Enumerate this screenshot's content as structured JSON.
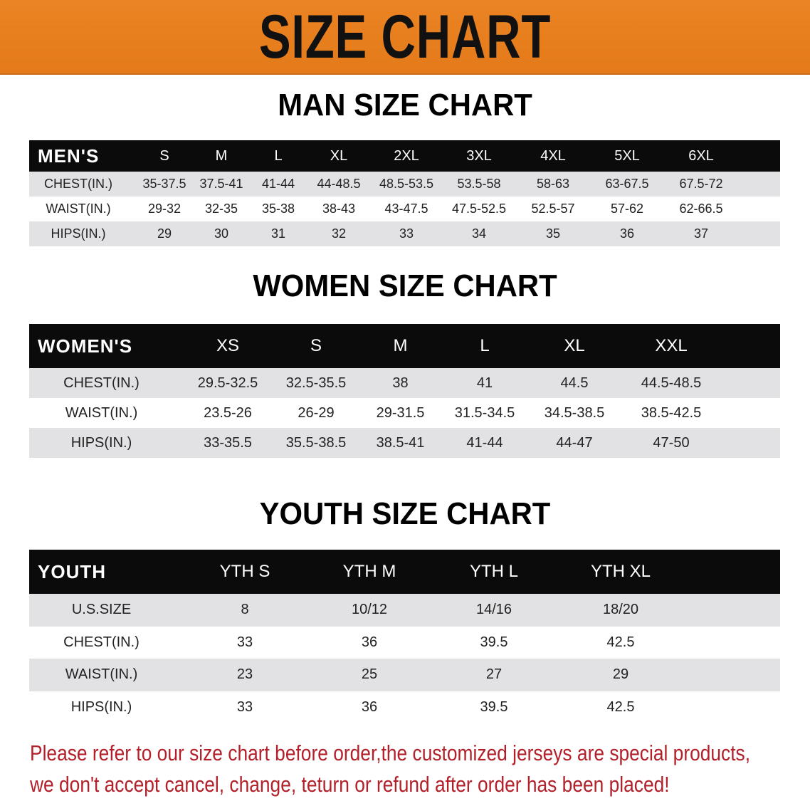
{
  "banner_title": "SIZE CHART",
  "colors": {
    "banner": "#e8801e",
    "header_row": "#0b0b0b",
    "stripe": "#e2e2e4",
    "notice": "#b3202a"
  },
  "men": {
    "title": "MAN SIZE CHART",
    "header": [
      "MEN'S",
      "S",
      "M",
      "L",
      "XL",
      "2XL",
      "3XL",
      "4XL",
      "5XL",
      "6XL"
    ],
    "rows": [
      [
        "CHEST(IN.)",
        "35-37.5",
        "37.5-41",
        "41-44",
        "44-48.5",
        "48.5-53.5",
        "53.5-58",
        "58-63",
        "63-67.5",
        "67.5-72"
      ],
      [
        "WAIST(IN.)",
        "29-32",
        "32-35",
        "35-38",
        "38-43",
        "43-47.5",
        "47.5-52.5",
        "52.5-57",
        "57-62",
        "62-66.5"
      ],
      [
        "HIPS(IN.)",
        "29",
        "30",
        "31",
        "32",
        "33",
        "34",
        "35",
        "36",
        "37"
      ]
    ]
  },
  "women": {
    "title": "WOMEN SIZE CHART",
    "header": [
      "WOMEN'S",
      "XS",
      "S",
      "M",
      "L",
      "XL",
      "XXL"
    ],
    "rows": [
      [
        "CHEST(IN.)",
        "29.5-32.5",
        "32.5-35.5",
        "38",
        "41",
        "44.5",
        "44.5-48.5"
      ],
      [
        "WAIST(IN.)",
        "23.5-26",
        "26-29",
        "29-31.5",
        "31.5-34.5",
        "34.5-38.5",
        "38.5-42.5"
      ],
      [
        "HIPS(IN.)",
        "33-35.5",
        "35.5-38.5",
        "38.5-41",
        "41-44",
        "44-47",
        "47-50"
      ]
    ]
  },
  "youth": {
    "title": "YOUTH SIZE CHART",
    "header": [
      "YOUTH",
      "YTH S",
      "YTH M",
      "YTH L",
      "YTH XL"
    ],
    "rows": [
      [
        "U.S.SIZE",
        "8",
        "10/12",
        "14/16",
        "18/20"
      ],
      [
        "CHEST(IN.)",
        "33",
        "36",
        "39.5",
        "42.5"
      ],
      [
        "WAIST(IN.)",
        "23",
        "25",
        "27",
        "29"
      ],
      [
        "HIPS(IN.)",
        "33",
        "36",
        "39.5",
        "42.5"
      ]
    ]
  },
  "notice": {
    "line1": "Please refer to our size chart before order,the customized jerseys are special products,",
    "line2": "we don't accept cancel, change, teturn or refund after order has been placed!"
  }
}
